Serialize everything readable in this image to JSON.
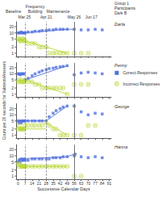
{
  "chart_data": {
    "type": "scatter",
    "title": "Group 1\nParticipants\nDark B",
    "x_label": "Successive Calendar Days",
    "y_label": "Count per 20 seconds for Subtests/Answers",
    "log": "y",
    "grid": false,
    "xlim": [
      -2,
      93
    ],
    "xticks": [
      0,
      7,
      14,
      21,
      28,
      35,
      42,
      49,
      56,
      63,
      70,
      77,
      84,
      91
    ],
    "ylim": [
      0.7,
      35
    ],
    "yticks": [
      1,
      2,
      5,
      10,
      20
    ],
    "phase_lines": [
      {
        "x": 7,
        "line_style": "dashed"
      },
      {
        "x": 28,
        "line_style": "dashed"
      },
      {
        "x": 56,
        "line_style": "solid"
      }
    ],
    "annotations": {
      "dates": [
        {
          "text": "Mar 25",
          "x": 0
        },
        {
          "text": "Apr 21",
          "x": 28
        },
        {
          "text": "May 26",
          "x": 56
        },
        {
          "text": "Jun 17",
          "x": 73
        }
      ],
      "phases": [
        {
          "text": "Baseline",
          "x": 3
        },
        {
          "text": "Frequency\nBuilding",
          "x": 17
        },
        {
          "text": "Maintenance",
          "x": 40
        }
      ]
    },
    "panels": [
      {
        "title": "Darla",
        "series": [
          {
            "name": "Correct Responses",
            "type": "line",
            "x": [
              0,
              6,
              null,
              7,
              49,
              null,
              49,
              56
            ],
            "values": [
              10,
              10,
              null,
              10,
              15,
              null,
              15,
              15
            ]
          },
          {
            "name": "Incorrect Responses",
            "type": "line",
            "x": [
              7,
              49
            ],
            "values": [
              4,
              1
            ]
          },
          {
            "name": "Correct Responses",
            "type": "scatter",
            "marker": "square",
            "x": [
              0,
              1,
              2,
              3,
              4,
              5,
              6,
              7,
              10,
              14,
              17,
              21,
              24,
              28,
              31,
              35,
              38,
              42,
              45,
              49,
              56,
              63,
              70,
              77,
              84
            ],
            "values": [
              10,
              10,
              10,
              11,
              10,
              10,
              10,
              10,
              11,
              11,
              12,
              12,
              13,
              13,
              14,
              14,
              15,
              15,
              15,
              15,
              15,
              14,
              14,
              15,
              14
            ]
          },
          {
            "name": "Incorrect Responses",
            "type": "scatter",
            "marker": "circle-x",
            "x": [
              0,
              1,
              2,
              3,
              4,
              5,
              6,
              7,
              10,
              14,
              17,
              21,
              24,
              28,
              31,
              35,
              38,
              42,
              45,
              49,
              56,
              63,
              70
            ],
            "values": [
              5,
              5,
              4,
              4,
              5,
              5,
              4,
              4,
              3,
              3,
              3,
              2,
              2,
              2,
              1,
              1,
              1,
              1,
              1,
              1,
              1,
              1,
              1
            ]
          }
        ]
      },
      {
        "title": "Penny",
        "legend": "right",
        "series": [
          {
            "name": "Correct Responses",
            "type": "line",
            "x": [
              7,
              49
            ],
            "values": [
              5,
              25
            ]
          },
          {
            "name": "Incorrect Responses",
            "type": "line",
            "x": [
              7,
              49
            ],
            "values": [
              5,
              1
            ]
          },
          {
            "name": "Correct Responses",
            "type": "scatter",
            "marker": "square",
            "x": [
              0,
              1,
              2,
              3,
              4,
              5,
              6,
              7,
              10,
              14,
              17,
              21,
              24,
              28,
              31,
              35,
              38,
              42,
              45,
              49,
              56,
              63,
              70,
              77,
              84
            ],
            "values": [
              10,
              10,
              9,
              10,
              10,
              10,
              10,
              5,
              6,
              8,
              10,
              12,
              14,
              16,
              18,
              19,
              21,
              22,
              23,
              25,
              9,
              11,
              12,
              11,
              10
            ]
          },
          {
            "name": "Incorrect Responses",
            "type": "scatter",
            "marker": "circle-x",
            "x": [
              0,
              1,
              2,
              3,
              4,
              5,
              6,
              7,
              10,
              14,
              17,
              21,
              24,
              28,
              31,
              35,
              38,
              42,
              45,
              49,
              56,
              63,
              70
            ],
            "values": [
              4,
              5,
              4,
              5,
              4,
              4,
              4,
              5,
              4,
              4,
              3,
              3,
              2,
              2,
              2,
              2,
              2,
              2,
              2,
              1,
              3,
              3,
              3
            ]
          }
        ]
      },
      {
        "title": "George",
        "series": [
          {
            "name": "Correct Responses",
            "type": "line",
            "x": [
              0,
              28,
              null,
              28,
              49
            ],
            "values": [
              5,
              5,
              null,
              5,
              27
            ]
          },
          {
            "name": "Incorrect Responses",
            "type": "line",
            "x": [
              0,
              28,
              null,
              28,
              49
            ],
            "values": [
              2,
              2,
              null,
              4,
              1
            ]
          },
          {
            "name": "Correct Responses",
            "type": "scatter",
            "marker": "square",
            "x": [
              0,
              1,
              2,
              3,
              4,
              5,
              6,
              7,
              10,
              14,
              17,
              21,
              24,
              28,
              31,
              35,
              38,
              42,
              45,
              49,
              56,
              63,
              70,
              77,
              84
            ],
            "values": [
              5,
              4,
              5,
              4,
              5,
              5,
              5,
              5,
              5,
              5,
              5,
              5,
              5,
              5,
              8,
              12,
              16,
              20,
              24,
              27,
              27,
              14,
              10,
              12,
              11
            ]
          },
          {
            "name": "Incorrect Responses",
            "type": "scatter",
            "marker": "circle-x",
            "x": [
              0,
              1,
              2,
              3,
              4,
              5,
              6,
              7,
              10,
              14,
              17,
              21,
              24,
              28,
              31,
              35,
              38,
              42,
              45,
              49,
              56,
              63,
              70,
              77
            ],
            "values": [
              2,
              3,
              2,
              2,
              2,
              2,
              2,
              3,
              3,
              3,
              3,
              3,
              3,
              4,
              3,
              2,
              2,
              1,
              1,
              1,
              1,
              1,
              3,
              3
            ]
          }
        ]
      },
      {
        "title": "Hanna",
        "series": [
          {
            "name": "Correct Responses",
            "type": "line",
            "x": [
              0,
              49,
              null,
              49,
              56
            ],
            "values": [
              7,
              9,
              null,
              9,
              12
            ]
          },
          {
            "name": "Incorrect Responses",
            "type": "line",
            "x": [
              0,
              49
            ],
            "values": [
              3,
              3
            ]
          },
          {
            "name": "Correct Responses",
            "type": "scatter",
            "marker": "square",
            "x": [
              0,
              1,
              2,
              3,
              4,
              5,
              6,
              7,
              10,
              14,
              17,
              21,
              24,
              28,
              31,
              35,
              38,
              42,
              45,
              49,
              56,
              57,
              63,
              70,
              77,
              84
            ],
            "values": [
              5,
              6,
              5,
              7,
              6,
              6,
              7,
              6,
              6,
              7,
              7,
              7,
              7,
              7,
              7,
              8,
              8,
              8,
              9,
              9,
              10,
              12,
              9,
              8,
              9,
              8
            ]
          },
          {
            "name": "Incorrect Responses",
            "type": "scatter",
            "marker": "circle-x",
            "x": [
              0,
              1,
              2,
              3,
              4,
              5,
              6,
              7,
              10,
              14,
              17,
              21,
              24,
              28,
              31,
              35,
              38,
              42,
              45,
              49,
              56,
              63
            ],
            "values": [
              4,
              3,
              4,
              3,
              3,
              3,
              3,
              3,
              3,
              3,
              3,
              3,
              3,
              3,
              3,
              3,
              3,
              3,
              3,
              3,
              1,
              1
            ]
          }
        ]
      }
    ]
  }
}
